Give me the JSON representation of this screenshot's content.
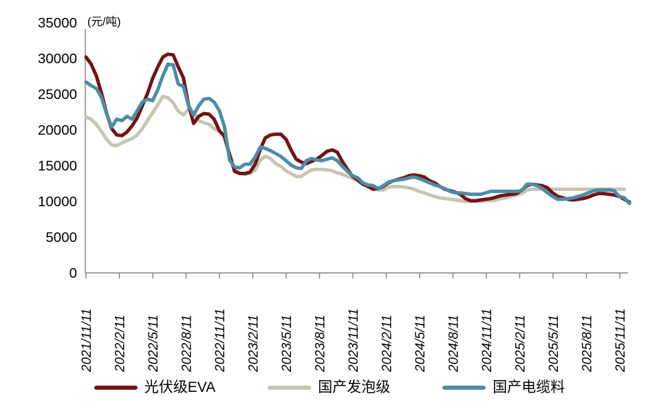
{
  "chart_data": {
    "type": "line",
    "title": "",
    "unit_label": "(元/吨)",
    "ylabel": "",
    "xlabel": "",
    "grid": false,
    "legend_position": "bottom",
    "y_max": 35000,
    "y_ticks": [
      0,
      5000,
      10000,
      15000,
      20000,
      25000,
      30000,
      35000
    ],
    "x_tick_labels": [
      "2021/11/11",
      "2022/2/11",
      "2022/5/11",
      "2022/8/11",
      "2022/11/11",
      "2023/2/11",
      "2023/5/11",
      "2023/8/11",
      "2023/11/11",
      "2024/2/11",
      "2024/5/11",
      "2024/8/11",
      "2024/11/11",
      "2025/2/11",
      "2025/5/11",
      "2025/8/11",
      "2025/11/11"
    ],
    "sampling": "biweekly from 2021/11/11",
    "axis_color": "#808080",
    "series": [
      {
        "key": "eva",
        "name": "光伏级EVA",
        "color": "#721417",
        "values": [
          30200,
          29200,
          27600,
          25200,
          22400,
          20200,
          19300,
          19200,
          19700,
          20600,
          21700,
          23400,
          25100,
          27200,
          28800,
          30200,
          30600,
          30500,
          28800,
          27300,
          23500,
          20900,
          21900,
          22300,
          22200,
          21500,
          19900,
          19100,
          16500,
          14200,
          13900,
          13900,
          14100,
          15200,
          17300,
          18900,
          19300,
          19400,
          19400,
          18700,
          17200,
          15900,
          15500,
          15300,
          15600,
          15900,
          16400,
          17000,
          17200,
          16900,
          15600,
          14500,
          13500,
          13000,
          12400,
          12100,
          11700,
          11800,
          12100,
          12600,
          12900,
          13100,
          13300,
          13600,
          13700,
          13600,
          13400,
          12900,
          12600,
          12100,
          11700,
          11500,
          11300,
          11000,
          10400,
          10100,
          10100,
          10200,
          10300,
          10400,
          10600,
          10800,
          10900,
          11000,
          11100,
          11600,
          12200,
          12400,
          12300,
          12200,
          11900,
          11200,
          10700,
          10500,
          10300,
          10200,
          10300,
          10400,
          10600,
          10900,
          11100,
          11100,
          11000,
          10900,
          10700,
          10300,
          9900
        ]
      },
      {
        "key": "foaming",
        "name": "国产发泡级",
        "color": "#C8C4B4",
        "values": [
          21800,
          21500,
          20800,
          19800,
          18700,
          17900,
          17800,
          18200,
          18500,
          18800,
          19300,
          20200,
          21300,
          22400,
          23500,
          24700,
          24500,
          23800,
          22600,
          22100,
          22900,
          22400,
          21300,
          21000,
          20800,
          20200,
          19800,
          19100,
          16800,
          14500,
          14000,
          13800,
          13900,
          14400,
          15800,
          16300,
          16000,
          15300,
          14900,
          14300,
          13900,
          13500,
          13500,
          14000,
          14400,
          14500,
          14500,
          14400,
          14300,
          14000,
          13800,
          13500,
          13200,
          12900,
          12400,
          12200,
          12000,
          11600,
          11600,
          12000,
          12100,
          12100,
          12000,
          11900,
          11700,
          11400,
          11200,
          10900,
          10700,
          10500,
          10400,
          10300,
          10200,
          10100,
          10000,
          10000,
          10000,
          10000,
          10100,
          10100,
          10200,
          10400,
          10500,
          10700,
          10900,
          11100,
          11600,
          11700,
          11700,
          11700,
          11700,
          11700,
          11700,
          11700,
          11700,
          11700,
          11700,
          11700,
          11700,
          11700,
          11700,
          11700,
          11700,
          11700,
          11700,
          11700,
          null
        ]
      },
      {
        "key": "cable",
        "name": "国产电缆料",
        "color": "#4E8CA4",
        "values": [
          26700,
          26200,
          25800,
          24600,
          22300,
          20400,
          21500,
          21300,
          21900,
          21500,
          22700,
          23900,
          24300,
          24100,
          25600,
          27600,
          29200,
          29100,
          26400,
          26100,
          23400,
          22100,
          23400,
          24300,
          24400,
          23900,
          22700,
          20500,
          15800,
          14800,
          14700,
          15200,
          15200,
          16200,
          17600,
          17400,
          17100,
          16700,
          16300,
          15700,
          15100,
          14700,
          14600,
          15700,
          16000,
          15800,
          15700,
          15900,
          16100,
          15700,
          14900,
          14200,
          13600,
          13300,
          12600,
          12300,
          12200,
          11800,
          12200,
          12700,
          12900,
          13000,
          13100,
          13300,
          13400,
          13200,
          12900,
          12600,
          12300,
          12100,
          11800,
          11400,
          11200,
          11200,
          11100,
          11000,
          11000,
          11000,
          11200,
          11400,
          11400,
          11400,
          11400,
          11400,
          11400,
          11500,
          12400,
          12400,
          12200,
          11800,
          11200,
          10700,
          10300,
          10300,
          10400,
          10500,
          10700,
          10900,
          11200,
          11500,
          11600,
          11600,
          11600,
          11500,
          10700,
          10500,
          9700
        ]
      }
    ]
  }
}
